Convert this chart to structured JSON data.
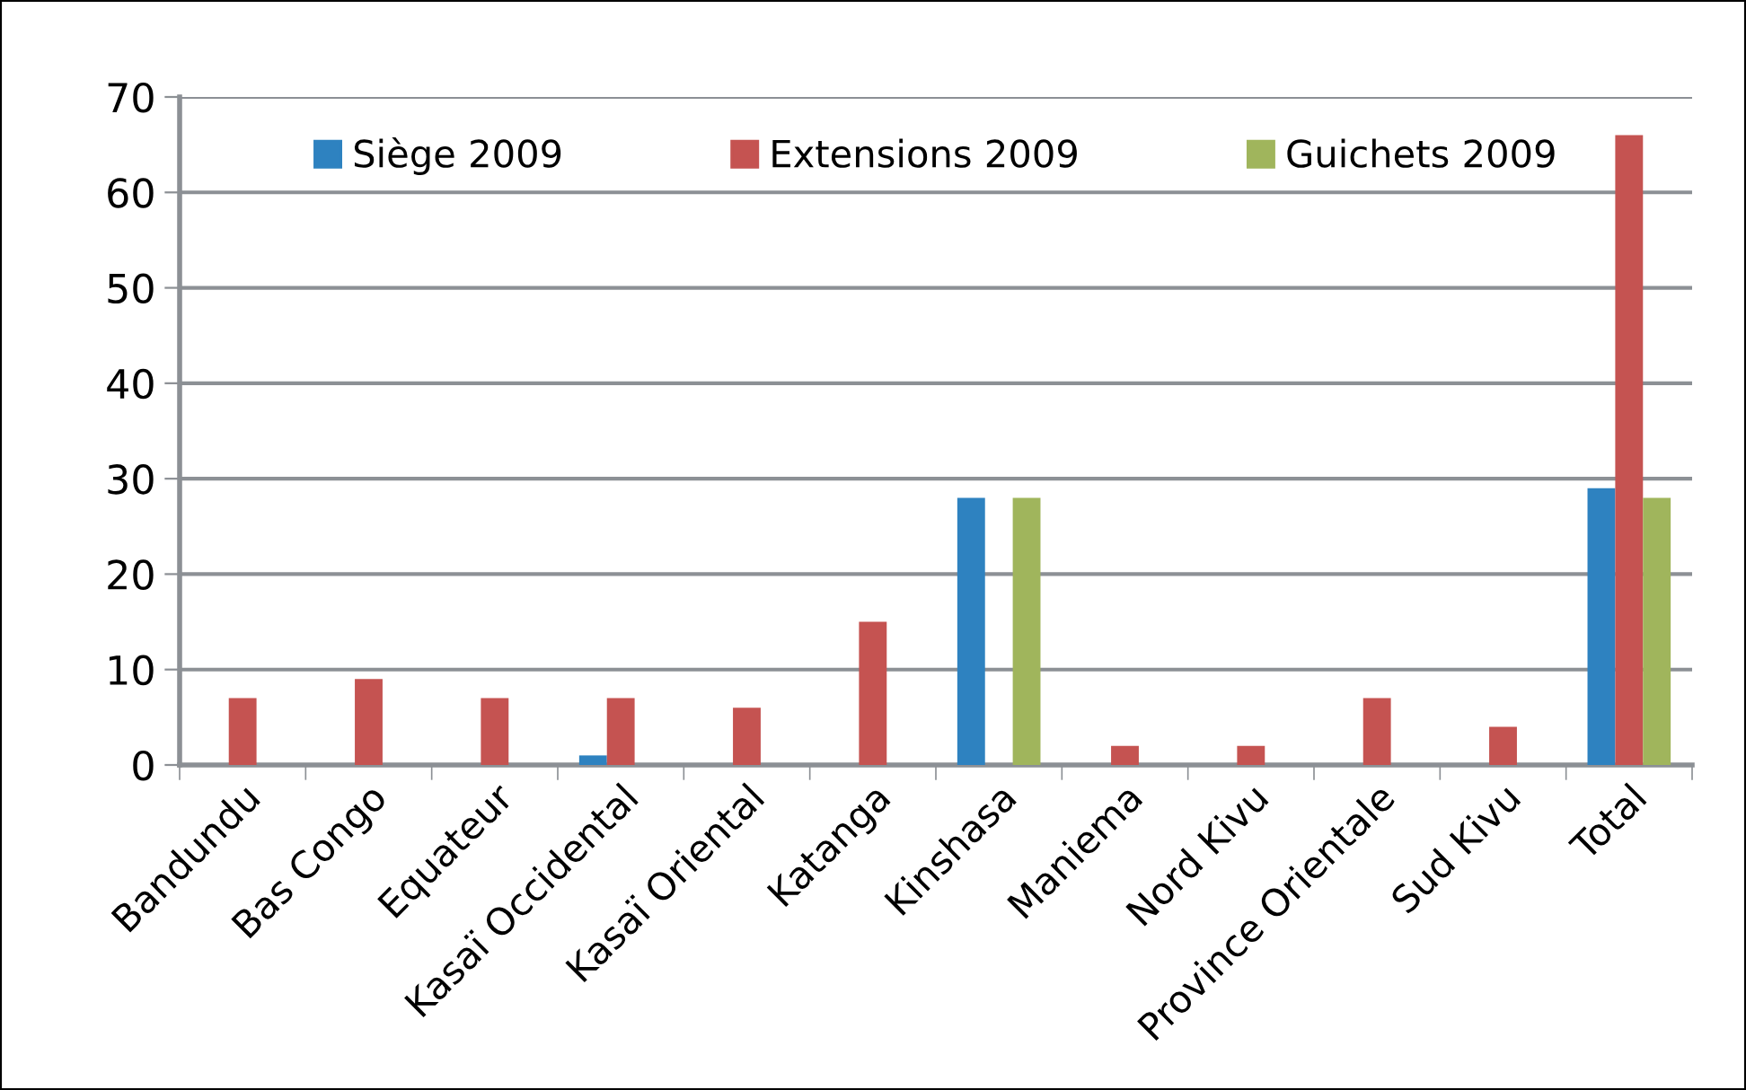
{
  "chart_data": {
    "type": "bar",
    "categories": [
      "Bandundu",
      "Bas Congo",
      "Equateur",
      "Kasaï Occidental",
      "Kasaï Oriental",
      "Katanga",
      "Kinshasa",
      "Maniema",
      "Nord Kivu",
      "Province Orientale",
      "Sud Kivu",
      "Total"
    ],
    "series": [
      {
        "name": "Siège 2009",
        "color": "#2e82c0",
        "values": [
          null,
          null,
          null,
          1,
          null,
          null,
          28,
          null,
          null,
          null,
          null,
          29
        ]
      },
      {
        "name": "Extensions 2009",
        "color": "#c55351",
        "values": [
          7,
          9,
          7,
          7,
          6,
          15,
          null,
          2,
          2,
          7,
          4,
          66
        ]
      },
      {
        "name": "Guichets 2009",
        "color": "#a0b55c",
        "values": [
          null,
          null,
          null,
          null,
          null,
          null,
          28,
          null,
          null,
          null,
          null,
          28
        ]
      }
    ],
    "ylim": [
      0,
      70
    ],
    "yticks": [
      0,
      10,
      20,
      30,
      40,
      50,
      60,
      70
    ],
    "grid": "y",
    "legend": "top"
  }
}
